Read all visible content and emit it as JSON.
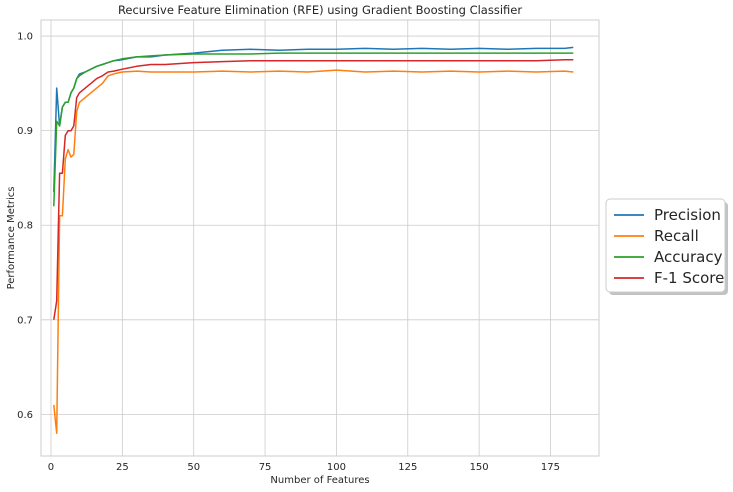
{
  "chart_data": {
    "type": "line",
    "title": "Recursive Feature Elimination (RFE) using Gradient Boosting Classifier",
    "xlabel": "Number of Features",
    "ylabel": "Performance Metrics",
    "xlim": [
      -3.5,
      192
    ],
    "ylim": [
      0.556,
      1.017
    ],
    "xticks": [
      0,
      25,
      50,
      75,
      100,
      125,
      150,
      175
    ],
    "yticks": [
      0.6,
      0.7,
      0.8,
      0.9,
      1.0
    ],
    "ytick_labels": [
      "0.6",
      "0.7",
      "0.8",
      "0.9",
      "1.0"
    ],
    "grid": true,
    "legend": "right, outside plot",
    "x": [
      1,
      2,
      3,
      4,
      5,
      6,
      7,
      8,
      9,
      10,
      12,
      14,
      16,
      18,
      20,
      22,
      25,
      30,
      35,
      40,
      50,
      60,
      70,
      80,
      90,
      100,
      110,
      120,
      130,
      140,
      150,
      160,
      170,
      180,
      183
    ],
    "series": [
      {
        "name": "Precision",
        "color": "#1f77b4",
        "values": [
          0.835,
          0.945,
          0.905,
          0.925,
          0.93,
          0.93,
          0.94,
          0.945,
          0.955,
          0.96,
          0.962,
          0.965,
          0.968,
          0.97,
          0.972,
          0.974,
          0.975,
          0.978,
          0.978,
          0.98,
          0.982,
          0.985,
          0.986,
          0.985,
          0.986,
          0.986,
          0.987,
          0.986,
          0.987,
          0.986,
          0.987,
          0.986,
          0.987,
          0.987,
          0.988
        ]
      },
      {
        "name": "Recall",
        "color": "#ff7f0e",
        "values": [
          0.61,
          0.58,
          0.81,
          0.81,
          0.87,
          0.88,
          0.872,
          0.875,
          0.92,
          0.93,
          0.935,
          0.94,
          0.945,
          0.95,
          0.958,
          0.96,
          0.962,
          0.963,
          0.962,
          0.962,
          0.962,
          0.963,
          0.962,
          0.963,
          0.962,
          0.964,
          0.962,
          0.963,
          0.962,
          0.963,
          0.962,
          0.963,
          0.962,
          0.963,
          0.962
        ]
      },
      {
        "name": "Accuracy",
        "color": "#2ca02c",
        "values": [
          0.82,
          0.91,
          0.905,
          0.925,
          0.93,
          0.93,
          0.94,
          0.945,
          0.955,
          0.958,
          0.962,
          0.965,
          0.968,
          0.97,
          0.972,
          0.974,
          0.976,
          0.978,
          0.979,
          0.98,
          0.981,
          0.981,
          0.981,
          0.982,
          0.982,
          0.982,
          0.982,
          0.982,
          0.982,
          0.982,
          0.982,
          0.982,
          0.982,
          0.982,
          0.982
        ]
      },
      {
        "name": "F-1 Score",
        "color": "#d62728",
        "values": [
          0.7,
          0.72,
          0.855,
          0.855,
          0.895,
          0.9,
          0.9,
          0.905,
          0.935,
          0.94,
          0.945,
          0.95,
          0.955,
          0.958,
          0.962,
          0.963,
          0.965,
          0.968,
          0.97,
          0.97,
          0.972,
          0.973,
          0.974,
          0.974,
          0.974,
          0.974,
          0.974,
          0.974,
          0.974,
          0.974,
          0.974,
          0.974,
          0.974,
          0.975,
          0.975
        ]
      }
    ]
  }
}
